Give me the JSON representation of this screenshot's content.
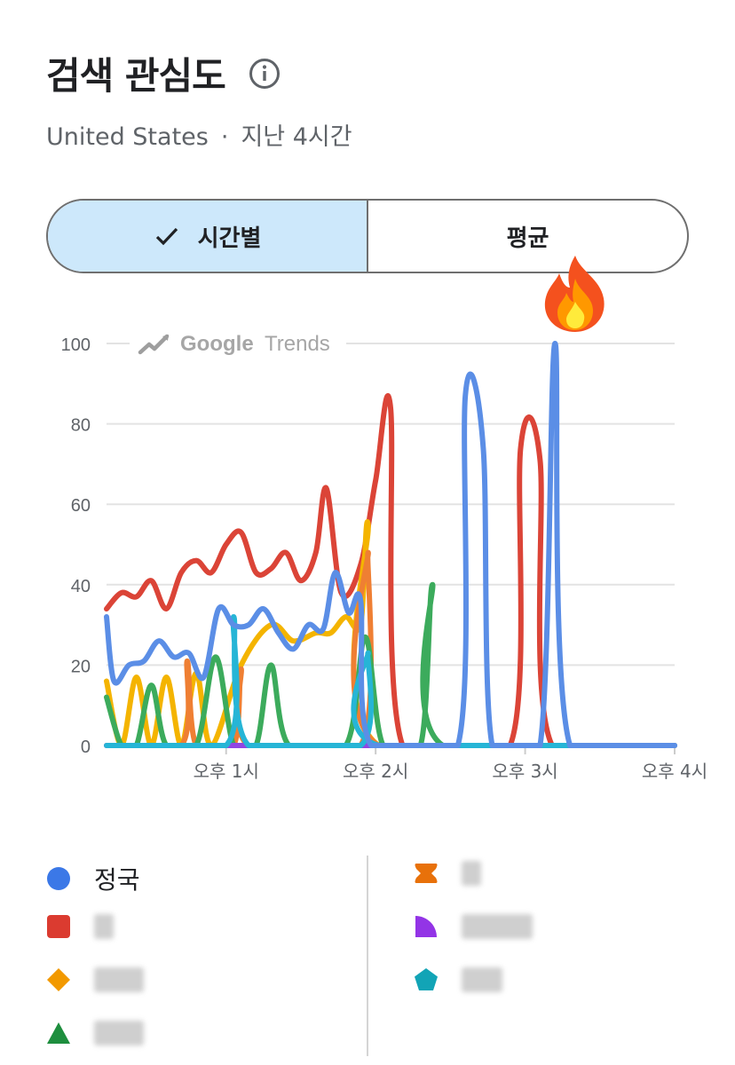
{
  "header": {
    "title": "검색 관심도",
    "region": "United States",
    "separator": "·",
    "period": "지난 4시간"
  },
  "toggle": {
    "hourly_label": "시간별",
    "average_label": "평균",
    "selected": "시간별"
  },
  "watermark": {
    "google": "Google",
    "trends": "Trends"
  },
  "chart_data": {
    "type": "line",
    "ylim": [
      0,
      100
    ],
    "yticks": [
      0,
      20,
      40,
      60,
      80,
      100
    ],
    "x_tick_labels": [
      "오후 1시",
      "오후 2시",
      "오후 3시",
      "오후 4시"
    ],
    "x_tick_positions": [
      1,
      2,
      3,
      4
    ],
    "xlim": [
      0.2,
      4.0
    ],
    "grid": true,
    "series": [
      {
        "name": "",
        "color": "#db4437",
        "points": [
          [
            0.2,
            34
          ],
          [
            0.3,
            38
          ],
          [
            0.4,
            37
          ],
          [
            0.5,
            41
          ],
          [
            0.6,
            34
          ],
          [
            0.7,
            43
          ],
          [
            0.8,
            46
          ],
          [
            0.9,
            43
          ],
          [
            1.0,
            50
          ],
          [
            1.1,
            53
          ],
          [
            1.2,
            43
          ],
          [
            1.3,
            44
          ],
          [
            1.4,
            48
          ],
          [
            1.5,
            41
          ],
          [
            1.6,
            48
          ],
          [
            1.67,
            64
          ],
          [
            1.77,
            38
          ],
          [
            1.9,
            45
          ],
          [
            2.0,
            66
          ],
          [
            2.1,
            84
          ],
          [
            2.18,
            0
          ],
          [
            2.9,
            0
          ],
          [
            2.97,
            74
          ],
          [
            3.1,
            71
          ],
          [
            3.18,
            0
          ],
          [
            4.0,
            0
          ]
        ]
      },
      {
        "name": "",
        "color": "#f4b400",
        "points": [
          [
            0.2,
            16
          ],
          [
            0.3,
            0
          ],
          [
            0.4,
            17
          ],
          [
            0.5,
            0
          ],
          [
            0.6,
            17
          ],
          [
            0.7,
            0
          ],
          [
            0.8,
            18
          ],
          [
            0.9,
            0
          ],
          [
            1.1,
            20
          ],
          [
            1.3,
            30
          ],
          [
            1.45,
            26
          ],
          [
            1.6,
            28
          ],
          [
            1.7,
            28
          ],
          [
            1.8,
            32
          ],
          [
            1.9,
            30
          ],
          [
            1.95,
            55
          ],
          [
            2.02,
            0
          ],
          [
            4.0,
            0
          ]
        ]
      },
      {
        "name": "",
        "color": "#ef7f33",
        "points": [
          [
            0.2,
            0
          ],
          [
            0.7,
            0
          ],
          [
            0.74,
            21
          ],
          [
            0.8,
            0
          ],
          [
            1.05,
            0
          ],
          [
            1.1,
            19
          ],
          [
            1.15,
            0
          ],
          [
            1.9,
            0
          ],
          [
            1.95,
            48
          ],
          [
            2.02,
            0
          ],
          [
            4.0,
            0
          ]
        ]
      },
      {
        "name": "",
        "color": "#3cab5c",
        "points": [
          [
            0.2,
            12
          ],
          [
            0.3,
            0
          ],
          [
            0.4,
            0
          ],
          [
            0.5,
            15
          ],
          [
            0.6,
            0
          ],
          [
            0.8,
            0
          ],
          [
            0.93,
            22
          ],
          [
            1.05,
            0
          ],
          [
            1.2,
            0
          ],
          [
            1.3,
            20
          ],
          [
            1.42,
            0
          ],
          [
            1.8,
            0
          ],
          [
            1.93,
            27
          ],
          [
            2.05,
            0
          ],
          [
            2.3,
            0
          ],
          [
            2.38,
            40
          ],
          [
            2.45,
            0
          ],
          [
            4.0,
            0
          ]
        ]
      },
      {
        "name": "",
        "color": "#9146e3",
        "points": [
          [
            0.2,
            0
          ],
          [
            4.0,
            0
          ]
        ]
      },
      {
        "name": "",
        "color": "#26b5d6",
        "points": [
          [
            0.2,
            0
          ],
          [
            1.0,
            0
          ],
          [
            1.05,
            32
          ],
          [
            1.15,
            0
          ],
          [
            1.9,
            0
          ],
          [
            1.95,
            23
          ],
          [
            2.02,
            0
          ],
          [
            4.0,
            0
          ]
        ]
      },
      {
        "name": "정국",
        "color": "#5b8ee6",
        "points": [
          [
            0.2,
            32
          ],
          [
            0.25,
            16
          ],
          [
            0.35,
            20
          ],
          [
            0.45,
            21
          ],
          [
            0.55,
            26
          ],
          [
            0.65,
            22
          ],
          [
            0.75,
            23
          ],
          [
            0.85,
            17
          ],
          [
            0.95,
            34
          ],
          [
            1.05,
            30
          ],
          [
            1.15,
            30
          ],
          [
            1.25,
            34
          ],
          [
            1.35,
            28
          ],
          [
            1.45,
            24
          ],
          [
            1.55,
            30
          ],
          [
            1.65,
            29
          ],
          [
            1.73,
            43
          ],
          [
            1.82,
            33
          ],
          [
            1.9,
            36
          ],
          [
            1.97,
            0
          ],
          [
            2.55,
            0
          ],
          [
            2.6,
            87
          ],
          [
            2.72,
            74
          ],
          [
            2.78,
            0
          ],
          [
            3.1,
            0
          ],
          [
            3.2,
            100
          ],
          [
            3.3,
            0
          ],
          [
            4.0,
            0
          ]
        ]
      }
    ]
  },
  "legend": {
    "left": [
      {
        "label": "정국",
        "icon": "circle-icon",
        "color": "#3b78e7"
      },
      {
        "label": "",
        "icon": "square-icon",
        "color": "#db3b30"
      },
      {
        "label": "",
        "icon": "diamond-icon",
        "color": "#f29900"
      },
      {
        "label": "",
        "icon": "triangle-icon",
        "color": "#1e8e3e"
      }
    ],
    "right": [
      {
        "label": "",
        "icon": "bowtie-icon",
        "color": "#e8710a"
      },
      {
        "label": "",
        "icon": "quarter-circle-icon",
        "color": "#9334e6"
      },
      {
        "label": "",
        "icon": "pentagon-icon",
        "color": "#12a4b6"
      }
    ]
  },
  "decor": {
    "fire_icon": "fire-icon"
  }
}
